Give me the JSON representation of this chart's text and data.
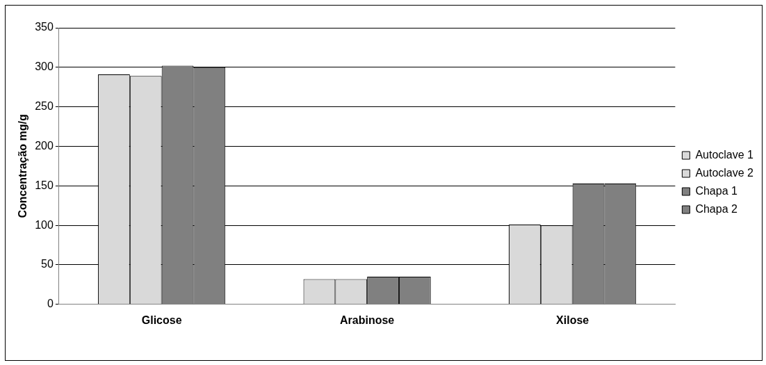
{
  "chart_data": {
    "type": "bar",
    "ylabel": "Concentração mg/g",
    "categories": [
      "Glicose",
      "Arabinose",
      "Xilose"
    ],
    "series": [
      {
        "name": "Autoclave 1",
        "color": "#d9d9d9",
        "values": [
          291,
          32,
          101
        ]
      },
      {
        "name": "Autoclave 2",
        "color": "#d9d9d9",
        "values": [
          289,
          32,
          100
        ]
      },
      {
        "name": "Chapa 1",
        "color": "#808080",
        "values": [
          302,
          35,
          153
        ]
      },
      {
        "name": "Chapa 2",
        "color": "#808080",
        "values": [
          300,
          35,
          153
        ]
      }
    ],
    "ylim": [
      0,
      350
    ],
    "yticks": [
      0,
      50,
      100,
      150,
      200,
      250,
      300,
      350
    ],
    "grid": "y",
    "legend": "right"
  }
}
